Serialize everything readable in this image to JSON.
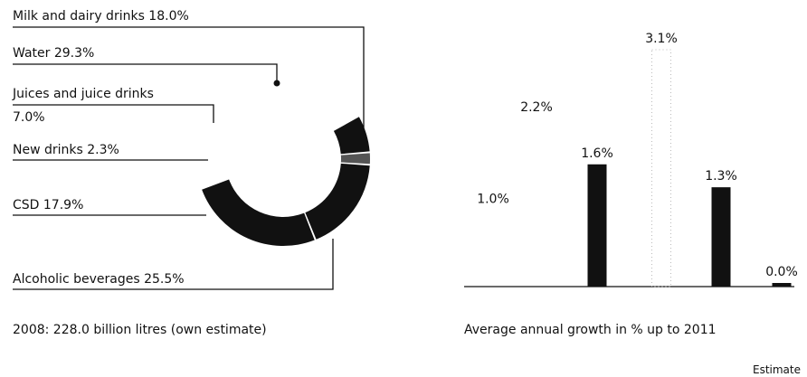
{
  "chart_data": [
    {
      "type": "pie",
      "style": "donut",
      "caption": "2008: 228.0 billion litres (own estimate)",
      "slices": [
        {
          "name": "Milk and dairy drinks",
          "value": 18.0,
          "label": "Milk and dairy drinks 18.0%",
          "color": "#ffffff"
        },
        {
          "name": "Water",
          "value": 29.3,
          "label": "Water 29.3%",
          "color": "#ffffff"
        },
        {
          "name": "Juices and juice drinks",
          "value": 7.0,
          "label_line1": "Juices and juice drinks",
          "label_line2": "7.0%",
          "color": "#111111"
        },
        {
          "name": "New drinks",
          "value": 2.3,
          "label": "New drinks 2.3%",
          "color": "#555555"
        },
        {
          "name": "CSD",
          "value": 17.9,
          "label": "CSD 17.9%",
          "color": "#111111"
        },
        {
          "name": "Alcoholic beverages",
          "value": 25.5,
          "label": "Alcoholic beverages 25.5%",
          "color": "#111111"
        }
      ]
    },
    {
      "type": "bar",
      "caption": "Average annual growth in % up to 2011",
      "footnote": "Estimate",
      "ylim": [
        0,
        3.1
      ],
      "bars": [
        {
          "value": 1.0,
          "label": "1.0%",
          "color": "#ffffff"
        },
        {
          "value": 2.2,
          "label": "2.2%",
          "color": "#ffffff"
        },
        {
          "value": 1.6,
          "label": "1.6%",
          "color": "#111111"
        },
        {
          "value": 3.1,
          "label": "3.1%",
          "color": "#cccccc"
        },
        {
          "value": 1.3,
          "label": "1.3%",
          "color": "#111111"
        },
        {
          "value": 0.0,
          "label": "0.0%",
          "color": "#111111"
        }
      ]
    }
  ]
}
